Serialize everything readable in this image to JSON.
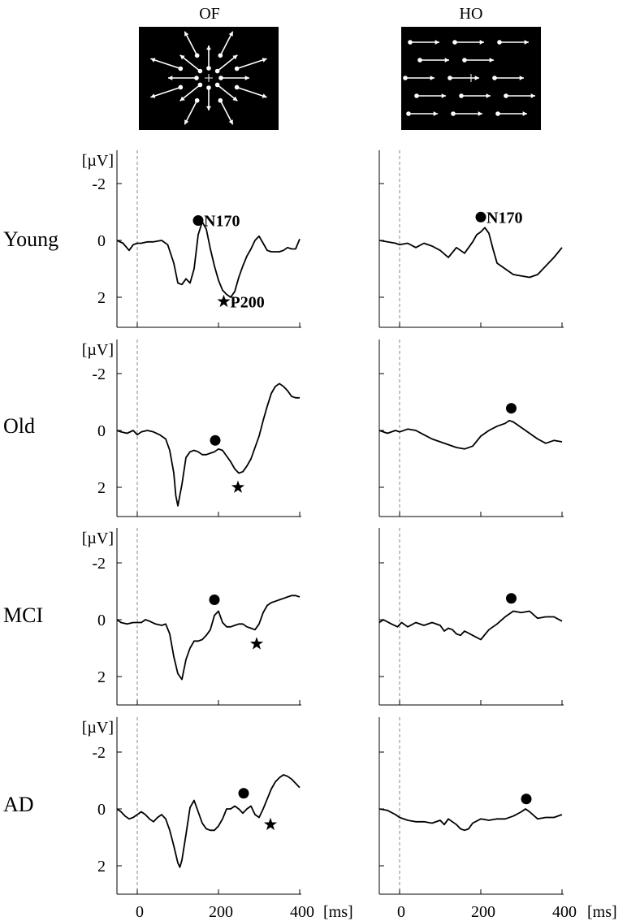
{
  "columns": [
    {
      "title": "OF",
      "stimulus": "Optic flow: dots with arrows radiating outward from the central fixation cross"
    },
    {
      "title": "HO",
      "stimulus": "Horizontal motion: dots with arrows moving rightward"
    }
  ],
  "rows": [
    "Young",
    "Old",
    "MCI",
    "AD"
  ],
  "y_axis": {
    "unit": "[µV]",
    "ticks": [
      -2,
      0,
      2
    ],
    "inverted": true,
    "ylim": [
      2.9,
      -3.2
    ]
  },
  "x_axis": {
    "unit": "[ms]",
    "ticks": [
      0,
      200,
      400
    ],
    "xlim": [
      -50,
      400
    ]
  },
  "annotations": {
    "n170": "N170",
    "p200": "P200"
  },
  "colors": {
    "trace": "#000000",
    "stim_bg": "#000000",
    "stim_fg": "#ffffff",
    "onset_line": "#888888"
  },
  "chart_data": [
    {
      "type": "line",
      "row": "Young",
      "column": "OF",
      "x": [
        -50,
        -35,
        -20,
        -10,
        0,
        10,
        25,
        40,
        60,
        75,
        90,
        100,
        110,
        120,
        130,
        140,
        150,
        160,
        170,
        180,
        190,
        200,
        210,
        220,
        230,
        240,
        250,
        260,
        270,
        280,
        290,
        300,
        310,
        320,
        330,
        340,
        350,
        360,
        370,
        380,
        390,
        400
      ],
      "y": [
        0,
        0.1,
        0.35,
        0.15,
        0.1,
        0.1,
        0.05,
        0.05,
        0.0,
        0.15,
        0.8,
        1.5,
        1.55,
        1.35,
        1.5,
        1.0,
        -0.2,
        -0.65,
        -0.4,
        0.3,
        0.9,
        1.4,
        1.75,
        1.9,
        2.0,
        1.8,
        1.3,
        0.9,
        0.55,
        0.3,
        0.0,
        -0.15,
        0.1,
        0.35,
        0.4,
        0.4,
        0.4,
        0.35,
        0.25,
        0.3,
        0.3,
        -0.05
      ],
      "markers": [
        {
          "kind": "circle",
          "label": "N170",
          "x": 150,
          "y": -0.7
        },
        {
          "kind": "star",
          "label": "P200",
          "x": 213,
          "y": 2.15
        }
      ]
    },
    {
      "type": "line",
      "row": "Young",
      "column": "HO",
      "x": [
        -50,
        -30,
        -10,
        0,
        20,
        40,
        60,
        80,
        100,
        120,
        140,
        160,
        180,
        190,
        200,
        210,
        220,
        230,
        240,
        260,
        280,
        300,
        320,
        340,
        360,
        380,
        400
      ],
      "y": [
        0,
        0.05,
        0.1,
        0.15,
        0.1,
        0.25,
        0.1,
        0.2,
        0.35,
        0.6,
        0.25,
        0.45,
        0.05,
        -0.2,
        -0.3,
        -0.45,
        -0.25,
        0.3,
        0.8,
        1.0,
        1.2,
        1.25,
        1.3,
        1.2,
        0.9,
        0.6,
        0.25
      ],
      "markers": [
        {
          "kind": "circle",
          "label": "N170",
          "x": 200,
          "y": -0.82
        }
      ]
    },
    {
      "type": "line",
      "row": "Old",
      "column": "OF",
      "x": [
        -50,
        -40,
        -25,
        -10,
        0,
        10,
        25,
        40,
        55,
        70,
        80,
        90,
        95,
        100,
        110,
        120,
        130,
        140,
        150,
        160,
        170,
        180,
        190,
        200,
        210,
        220,
        230,
        240,
        250,
        260,
        270,
        280,
        290,
        300,
        310,
        320,
        330,
        340,
        350,
        360,
        370,
        380,
        390,
        400
      ],
      "y": [
        0,
        0.05,
        0.1,
        0.0,
        0.15,
        0.05,
        0.0,
        0.05,
        0.15,
        0.3,
        0.7,
        1.5,
        2.3,
        2.65,
        1.9,
        0.95,
        0.75,
        0.7,
        0.75,
        0.85,
        0.85,
        0.8,
        0.75,
        0.65,
        0.7,
        0.9,
        1.1,
        1.35,
        1.5,
        1.45,
        1.25,
        1.0,
        0.6,
        0.2,
        -0.35,
        -0.85,
        -1.3,
        -1.55,
        -1.65,
        -1.55,
        -1.4,
        -1.2,
        -1.15,
        -1.15
      ],
      "markers": [
        {
          "kind": "circle",
          "x": 192,
          "y": 0.35
        },
        {
          "kind": "star",
          "x": 248,
          "y": 2.0
        }
      ]
    },
    {
      "type": "line",
      "row": "Old",
      "column": "HO",
      "x": [
        -50,
        -30,
        -10,
        0,
        20,
        40,
        60,
        80,
        100,
        120,
        140,
        160,
        180,
        200,
        220,
        240,
        260,
        270,
        280,
        300,
        320,
        340,
        360,
        380,
        400
      ],
      "y": [
        0,
        0.1,
        0.0,
        0.05,
        -0.05,
        0.0,
        0.15,
        0.3,
        0.4,
        0.5,
        0.6,
        0.65,
        0.55,
        0.2,
        0.0,
        -0.15,
        -0.25,
        -0.35,
        -0.3,
        -0.1,
        0.1,
        0.3,
        0.45,
        0.35,
        0.4
      ],
      "markers": [
        {
          "kind": "circle",
          "x": 275,
          "y": -0.78
        }
      ]
    },
    {
      "type": "line",
      "row": "MCI",
      "column": "OF",
      "x": [
        -50,
        -40,
        -25,
        -10,
        0,
        10,
        20,
        30,
        45,
        60,
        70,
        80,
        90,
        100,
        110,
        120,
        130,
        140,
        150,
        160,
        170,
        180,
        190,
        200,
        210,
        220,
        230,
        240,
        250,
        260,
        270,
        280,
        290,
        300,
        310,
        320,
        330,
        340,
        350,
        360,
        370,
        380,
        390,
        400
      ],
      "y": [
        0,
        0.1,
        0.15,
        0.1,
        0.1,
        0.1,
        0.0,
        0.05,
        0.15,
        0.2,
        0.15,
        0.5,
        1.3,
        1.9,
        2.1,
        1.4,
        1.0,
        0.75,
        0.75,
        0.7,
        0.55,
        0.35,
        -0.15,
        -0.3,
        0.1,
        0.25,
        0.25,
        0.2,
        0.15,
        0.15,
        0.25,
        0.3,
        0.35,
        0.15,
        -0.25,
        -0.5,
        -0.6,
        -0.65,
        -0.7,
        -0.75,
        -0.8,
        -0.85,
        -0.85,
        -0.8
      ],
      "markers": [
        {
          "kind": "circle",
          "x": 190,
          "y": -0.7
        },
        {
          "kind": "star",
          "x": 294,
          "y": 0.85
        }
      ]
    },
    {
      "type": "line",
      "row": "MCI",
      "column": "HO",
      "x": [
        -50,
        -40,
        -20,
        -5,
        5,
        20,
        40,
        60,
        80,
        100,
        110,
        120,
        130,
        140,
        150,
        160,
        180,
        200,
        220,
        240,
        260,
        280,
        300,
        320,
        340,
        360,
        380,
        400
      ],
      "y": [
        0.1,
        0.0,
        0.15,
        0.25,
        0.1,
        0.25,
        0.1,
        0.2,
        0.1,
        0.2,
        0.4,
        0.3,
        0.35,
        0.5,
        0.55,
        0.4,
        0.55,
        0.7,
        0.35,
        0.15,
        -0.1,
        -0.3,
        -0.25,
        -0.3,
        -0.05,
        -0.1,
        -0.1,
        0.05
      ],
      "markers": [
        {
          "kind": "circle",
          "x": 275,
          "y": -0.75
        }
      ]
    },
    {
      "type": "line",
      "row": "AD",
      "column": "OF",
      "x": [
        -50,
        -40,
        -30,
        -20,
        -10,
        0,
        10,
        20,
        30,
        40,
        50,
        60,
        70,
        80,
        90,
        100,
        105,
        110,
        120,
        130,
        140,
        150,
        160,
        170,
        180,
        190,
        200,
        210,
        220,
        230,
        240,
        250,
        260,
        270,
        280,
        290,
        300,
        310,
        320,
        330,
        340,
        350,
        360,
        370,
        380,
        390,
        400
      ],
      "y": [
        0,
        0.1,
        0.25,
        0.35,
        0.3,
        0.2,
        0.1,
        0.2,
        0.35,
        0.45,
        0.3,
        0.2,
        0.35,
        0.75,
        1.3,
        1.9,
        2.05,
        1.8,
        0.9,
        -0.05,
        -0.3,
        0.1,
        0.5,
        0.7,
        0.75,
        0.75,
        0.6,
        0.35,
        0.0,
        0.0,
        -0.1,
        0.0,
        0.15,
        0.0,
        -0.1,
        0.2,
        0.3,
        0.0,
        -0.35,
        -0.7,
        -0.95,
        -1.1,
        -1.2,
        -1.15,
        -1.05,
        -0.9,
        -0.75
      ],
      "markers": [
        {
          "kind": "circle",
          "x": 262,
          "y": -0.55
        },
        {
          "kind": "star",
          "x": 328,
          "y": 0.55
        }
      ]
    },
    {
      "type": "line",
      "row": "AD",
      "column": "HO",
      "x": [
        -50,
        -30,
        -10,
        0,
        20,
        40,
        60,
        80,
        100,
        110,
        120,
        130,
        140,
        150,
        160,
        170,
        180,
        200,
        220,
        240,
        260,
        280,
        300,
        310,
        320,
        340,
        360,
        380,
        400
      ],
      "y": [
        0.0,
        0.05,
        0.2,
        0.3,
        0.4,
        0.45,
        0.45,
        0.5,
        0.4,
        0.55,
        0.35,
        0.45,
        0.55,
        0.7,
        0.75,
        0.7,
        0.5,
        0.35,
        0.4,
        0.35,
        0.35,
        0.25,
        0.1,
        0.0,
        0.1,
        0.35,
        0.3,
        0.3,
        0.2
      ],
      "markers": [
        {
          "kind": "circle",
          "x": 312,
          "y": -0.35
        }
      ]
    }
  ]
}
